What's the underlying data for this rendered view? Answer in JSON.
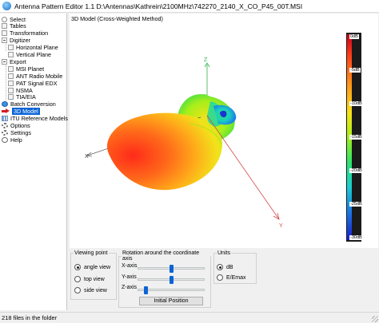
{
  "window": {
    "title": "Antenna Pattern Editor 1.1 D:\\Antennas\\Kathrein\\2100MHz\\742270_2140_X_CO_P45_00T.MSI"
  },
  "sidebar": {
    "items": [
      {
        "label": "Select",
        "icon": "radio-icon"
      },
      {
        "label": "Tables",
        "icon": "document-icon"
      },
      {
        "label": "Transformation",
        "icon": "document-icon"
      },
      {
        "label": "Digitizer",
        "icon": "collapse-icon"
      },
      {
        "label": "Horizontal Plane",
        "icon": "document-icon"
      },
      {
        "label": "Vertical Plane",
        "icon": "document-icon"
      },
      {
        "label": "Export",
        "icon": "collapse-icon"
      },
      {
        "label": "MSI Planet",
        "icon": "document-icon"
      },
      {
        "label": "ANT Radio Mobile",
        "icon": "document-icon"
      },
      {
        "label": "PAT Signal EDX",
        "icon": "document-icon"
      },
      {
        "label": "NSMA",
        "icon": "document-icon"
      },
      {
        "label": "TIA/EIA",
        "icon": "document-icon"
      },
      {
        "label": "Batch Conversion",
        "icon": "globe-icon"
      },
      {
        "label": "3D Model",
        "icon": "arrow-icon"
      },
      {
        "label": "ITU Reference Models",
        "icon": "grid-icon"
      },
      {
        "label": "Options",
        "icon": "gear-icon"
      },
      {
        "label": "Settings",
        "icon": "gear-icon"
      },
      {
        "label": "Help",
        "icon": "help-icon"
      }
    ],
    "selected": "3D Model"
  },
  "view": {
    "caption": "3D Model (Cross-Weighted Method)",
    "axis_labels": {
      "x": "X",
      "y": "Y",
      "z": "Z"
    },
    "colorbar_labels": [
      "0dB",
      "-5dB",
      "-10dB",
      "-15dB",
      "-20dB",
      "-25dB",
      "-30dB"
    ],
    "colors": {
      "max": "#c8001a",
      "mid": "#a6ef1a",
      "min": "#1a1ec8"
    }
  },
  "viewing_point": {
    "title": "Viewing point",
    "options": [
      "angle view",
      "top view",
      "side view"
    ],
    "selected": "angle view"
  },
  "rotation": {
    "title": "Rotation around the coordinate axis",
    "axes": [
      {
        "label": "X-axis",
        "value": 0.5
      },
      {
        "label": "Y-axis",
        "value": 0.5
      },
      {
        "label": "Z-axis",
        "value": 0.12
      }
    ],
    "reset_button": "Initial Position"
  },
  "units": {
    "title": "Units",
    "options": [
      "dB",
      "E/Emax"
    ],
    "selected": "dB"
  },
  "status": {
    "text": "218 files in the folder"
  }
}
